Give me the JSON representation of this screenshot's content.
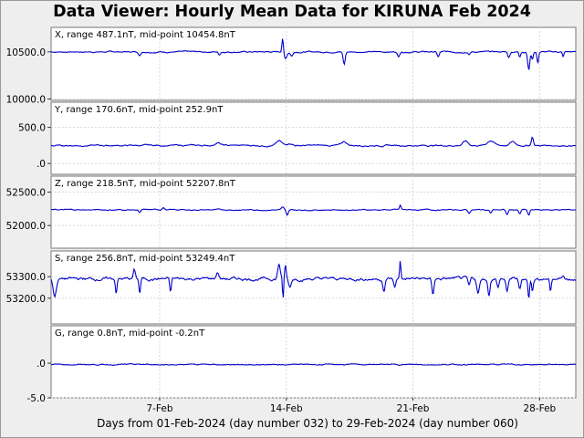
{
  "header": {
    "title": "Data Viewer:  Hourly Mean Data for KIRUNA Feb 2024"
  },
  "footer": {
    "xlabel": "Days from 01-Feb-2024 (day number 032) to 29-Feb-2024 (day number 060)"
  },
  "colors": {
    "trace": "#0000cc",
    "grid": "#d8d8d8",
    "panel_bg": "#ffffff",
    "page_bg": "#eeeeee"
  },
  "chart_data": {
    "type": "line",
    "x_unit": "day of February 2024",
    "xlim": [
      1,
      30
    ],
    "x_ticks": [
      {
        "day": 7,
        "label": "7-Feb"
      },
      {
        "day": 14,
        "label": "14-Feb"
      },
      {
        "day": 21,
        "label": "21-Feb"
      },
      {
        "day": 28,
        "label": "28-Feb"
      }
    ],
    "grid": true,
    "panels": [
      {
        "label": "X, range 487.1nT, mid-point 10454.8nT",
        "ylim": [
          9985,
          10760
        ],
        "y_ticks": [
          {
            "value": 10500,
            "label": "10500.0"
          },
          {
            "value": 10000,
            "label": "10000.0"
          }
        ],
        "baseline": 10500,
        "noise": 8,
        "features": [
          [
            5.9,
            10460,
            0.08
          ],
          [
            10.3,
            10470,
            0.08
          ],
          [
            13.8,
            10655,
            0.06
          ],
          [
            13.95,
            10430,
            0.12
          ],
          [
            14.3,
            10460,
            0.1
          ],
          [
            17.2,
            10370,
            0.08
          ],
          [
            20.2,
            10450,
            0.08
          ],
          [
            22.4,
            10445,
            0.08
          ],
          [
            24.1,
            10470,
            0.08
          ],
          [
            26.3,
            10440,
            0.08
          ],
          [
            26.9,
            10450,
            0.06
          ],
          [
            27.4,
            10310,
            0.08
          ],
          [
            27.6,
            10420,
            0.06
          ],
          [
            27.9,
            10380,
            0.06
          ],
          [
            29.3,
            10450,
            0.06
          ]
        ]
      },
      {
        "label": "Y, range 170.6nT, mid-point 252.9nT",
        "ylim": [
          -150,
          850
        ],
        "y_ticks": [
          {
            "value": 500,
            "label": "500.0"
          },
          {
            "value": 0,
            "label": ".0"
          }
        ],
        "baseline": 250,
        "noise": 12,
        "features": [
          [
            10.2,
            290,
            0.2
          ],
          [
            13.6,
            310,
            0.2
          ],
          [
            14.2,
            280,
            0.2
          ],
          [
            17.2,
            300,
            0.2
          ],
          [
            23.9,
            310,
            0.2
          ],
          [
            25.3,
            320,
            0.25
          ],
          [
            26.5,
            300,
            0.2
          ],
          [
            27.6,
            370,
            0.08
          ]
        ]
      },
      {
        "label": "Z, range 218.5nT, mid-point 52207.8nT",
        "ylim": [
          51660,
          52740
        ],
        "y_ticks": [
          {
            "value": 52500,
            "label": "52500.0"
          },
          {
            "value": 52000,
            "label": "52000.0"
          }
        ],
        "baseline": 52235,
        "noise": 10,
        "features": [
          [
            5.9,
            52190,
            0.08
          ],
          [
            7.2,
            52270,
            0.1
          ],
          [
            13.8,
            52270,
            0.08
          ],
          [
            14.05,
            52150,
            0.08
          ],
          [
            20.3,
            52300,
            0.06
          ],
          [
            24.1,
            52180,
            0.08
          ],
          [
            25.3,
            52190,
            0.08
          ],
          [
            26.2,
            52160,
            0.08
          ],
          [
            26.9,
            52170,
            0.08
          ],
          [
            27.4,
            52150,
            0.08
          ]
        ]
      },
      {
        "label": "S, range 256.8nT, mid-point 53249.4nT",
        "ylim": [
          53080,
          53420
        ],
        "y_ticks": [
          {
            "value": 53300,
            "label": "53300.0"
          },
          {
            "value": 53200,
            "label": "53200.0"
          }
        ],
        "baseline": 53290,
        "noise": 8,
        "features": [
          [
            1.2,
            53210,
            0.12
          ],
          [
            4.6,
            53225,
            0.06
          ],
          [
            5.9,
            53220,
            0.06
          ],
          [
            5.6,
            53330,
            0.08
          ],
          [
            7.6,
            53225,
            0.06
          ],
          [
            10.2,
            53320,
            0.1
          ],
          [
            13.6,
            53360,
            0.1
          ],
          [
            13.82,
            53185,
            0.04
          ],
          [
            13.95,
            53350,
            0.06
          ],
          [
            14.2,
            53250,
            0.1
          ],
          [
            19.4,
            53230,
            0.08
          ],
          [
            20.0,
            53250,
            0.08
          ],
          [
            20.3,
            53375,
            0.05
          ],
          [
            22.1,
            53215,
            0.08
          ],
          [
            24.1,
            53250,
            0.08
          ],
          [
            24.6,
            53220,
            0.1
          ],
          [
            25.2,
            53215,
            0.08
          ],
          [
            25.7,
            53250,
            0.08
          ],
          [
            26.2,
            53225,
            0.08
          ],
          [
            26.9,
            53240,
            0.08
          ],
          [
            27.4,
            53195,
            0.06
          ],
          [
            27.6,
            53235,
            0.06
          ],
          [
            28.6,
            53230,
            0.06
          ],
          [
            29.3,
            53310,
            0.08
          ]
        ]
      },
      {
        "label": "G, range 0.8nT, mid-point -0.2nT",
        "ylim": [
          -5.0,
          5.4
        ],
        "y_ticks": [
          {
            "value": 0,
            "label": ".0"
          },
          {
            "value": -5,
            "label": "-5.0"
          }
        ],
        "baseline": -0.2,
        "noise": 0.08,
        "features": []
      }
    ]
  }
}
